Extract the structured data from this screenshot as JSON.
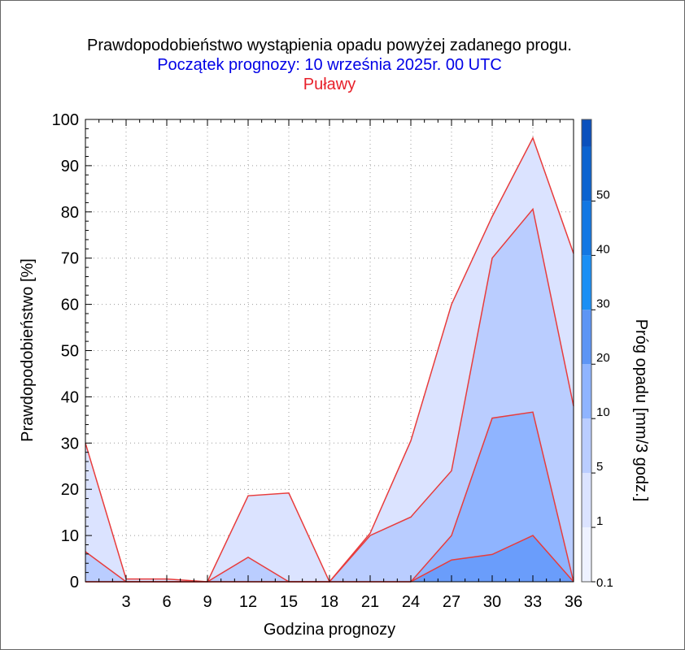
{
  "chart_data": {
    "type": "area",
    "title": "Prawdopodobieństwo wystąpienia opadu powyżej zadanego progu.",
    "subtitle": "Początek prognozy: 10 września 2025r. 00 UTC",
    "location": "Puławy",
    "xlabel": "Godzina prognozy",
    "ylabel": "Prawdopodobieństwo [%]",
    "xlim": [
      0,
      36
    ],
    "ylim": [
      0,
      100
    ],
    "x_ticks": [
      3,
      6,
      9,
      12,
      15,
      18,
      21,
      24,
      27,
      30,
      33,
      36
    ],
    "y_ticks": [
      0,
      10,
      20,
      30,
      40,
      50,
      60,
      70,
      80,
      90,
      100
    ],
    "grid": true,
    "x": [
      0,
      3,
      6,
      9,
      12,
      15,
      18,
      21,
      24,
      27,
      30,
      33,
      36
    ],
    "series": [
      {
        "threshold": 0.1,
        "color": "#dbe3ff",
        "values": [
          30,
          0.6,
          0.6,
          0,
          18.6,
          19.2,
          0,
          10.5,
          30.5,
          60,
          79,
          96,
          71
        ]
      },
      {
        "threshold": 1,
        "color": "#bacdff",
        "values": [
          6.5,
          0,
          0,
          0,
          5.3,
          0,
          0,
          10,
          14,
          24,
          70,
          80.6,
          38
        ]
      },
      {
        "threshold": 5,
        "color": "#8fb4ff",
        "values": [
          0,
          0,
          0,
          0,
          0,
          0,
          0,
          0,
          0,
          10,
          35.4,
          36.7,
          0
        ]
      },
      {
        "threshold": 10,
        "color": "#6a9dfb",
        "values": [
          0,
          0,
          0,
          0,
          0,
          0,
          0,
          0,
          0,
          4.7,
          5.9,
          10,
          0
        ]
      }
    ],
    "line_color": "#e83c3c",
    "colorbar": {
      "label": "Próg opadu [mm/3 godz.]",
      "tick_labels": [
        "0.1",
        "1",
        "5",
        "10",
        "20",
        "30",
        "40",
        "50"
      ],
      "colors": [
        "#eef2ff",
        "#dbe3ff",
        "#bacdff",
        "#8fb4ff",
        "#5d95f5",
        "#1a8ff5",
        "#1277e3",
        "#0b63d0",
        "#0a50bd"
      ]
    }
  }
}
